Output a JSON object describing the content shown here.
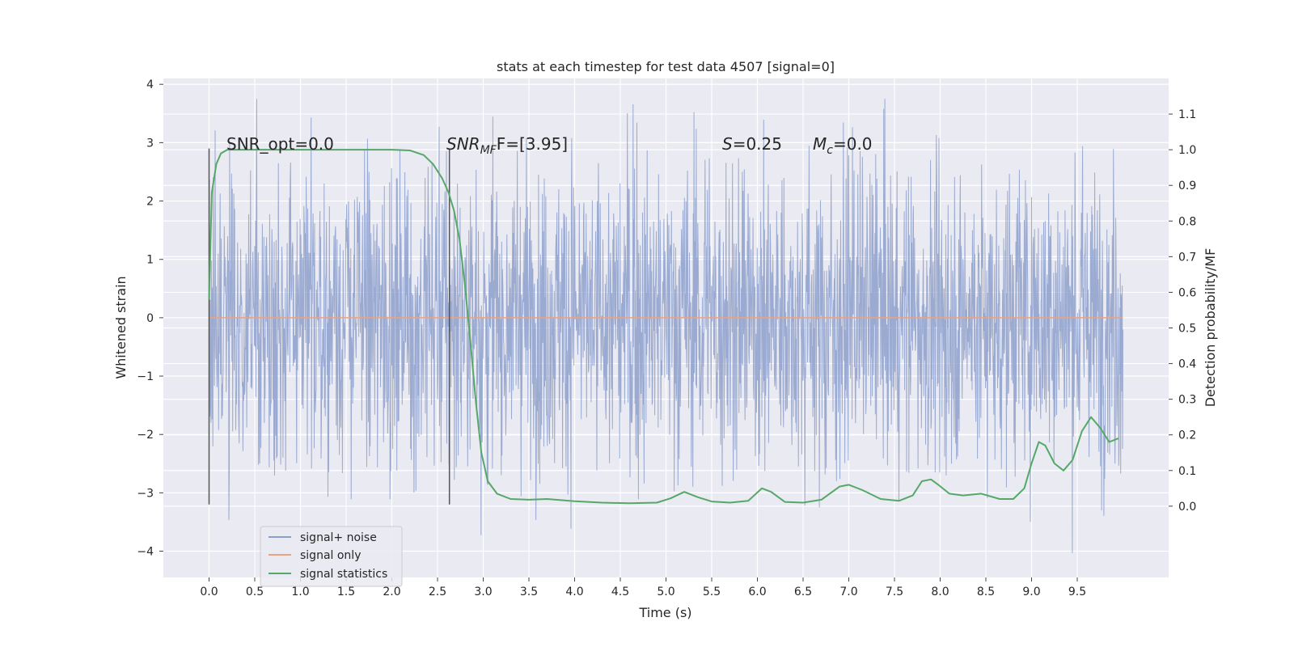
{
  "chart_data": {
    "type": "line",
    "title": "stats at each timestep for test data 4507 [signal=0]",
    "xlabel": "Time (s)",
    "ylabel_left": "Whitened strain",
    "ylabel_right": "Detection probability/MF",
    "xlim": [
      -0.5,
      10.5
    ],
    "ylim_left": [
      -4.45,
      4.1
    ],
    "ylim_right": [
      -0.2,
      1.2
    ],
    "x_ticks": [
      "0.0",
      "0.5",
      "1.0",
      "1.5",
      "2.0",
      "2.5",
      "3.0",
      "3.5",
      "4.0",
      "4.5",
      "5.0",
      "5.5",
      "6.0",
      "6.5",
      "7.0",
      "7.5",
      "8.0",
      "8.5",
      "9.0",
      "9.5"
    ],
    "y_ticks_left": [
      "4",
      "3",
      "2",
      "1",
      "0",
      "−1",
      "−2",
      "−3",
      "−4"
    ],
    "y_ticks_right": [
      "1.1",
      "1.0",
      "0.9",
      "0.8",
      "0.7",
      "0.6",
      "0.5",
      "0.4",
      "0.3",
      "0.2",
      "0.1",
      "0.0"
    ],
    "grid": true,
    "legend_position": "lower-left",
    "series": [
      {
        "name": "signal+ noise",
        "axis": "left",
        "color": "#8c9fcb",
        "kind": "noise",
        "x_range": [
          0.0,
          10.0
        ],
        "envelope_typical": [
          -2.4,
          2.4
        ],
        "extremes": [
          -4.05,
          3.75
        ]
      },
      {
        "name": "signal only",
        "axis": "left",
        "color": "#e8a383",
        "x": [
          0.0,
          10.0
        ],
        "values": [
          0.0,
          0.0
        ]
      },
      {
        "name": "signal statistics",
        "axis": "right",
        "color": "#55a868",
        "x": [
          0.0,
          0.03,
          0.08,
          0.13,
          0.2,
          0.3,
          0.5,
          1.0,
          1.5,
          2.0,
          2.2,
          2.35,
          2.45,
          2.55,
          2.62,
          2.68,
          2.74,
          2.8,
          2.86,
          2.92,
          2.98,
          3.05,
          3.15,
          3.3,
          3.5,
          3.7,
          4.0,
          4.3,
          4.6,
          4.9,
          5.05,
          5.2,
          5.35,
          5.5,
          5.7,
          5.9,
          6.05,
          6.15,
          6.3,
          6.5,
          6.7,
          6.9,
          7.0,
          7.15,
          7.35,
          7.55,
          7.7,
          7.8,
          7.9,
          7.98,
          8.1,
          8.25,
          8.45,
          8.65,
          8.8,
          8.92,
          9.0,
          9.08,
          9.15,
          9.25,
          9.35,
          9.45,
          9.55,
          9.65,
          9.75,
          9.85,
          9.95
        ],
        "values": [
          0.58,
          0.88,
          0.96,
          0.99,
          1.0,
          1.0,
          1.0,
          1.0,
          1.0,
          1.0,
          0.998,
          0.985,
          0.96,
          0.92,
          0.88,
          0.83,
          0.75,
          0.62,
          0.46,
          0.29,
          0.15,
          0.07,
          0.035,
          0.02,
          0.018,
          0.02,
          0.014,
          0.01,
          0.008,
          0.01,
          0.022,
          0.04,
          0.025,
          0.013,
          0.01,
          0.015,
          0.05,
          0.04,
          0.012,
          0.01,
          0.018,
          0.055,
          0.06,
          0.045,
          0.02,
          0.015,
          0.03,
          0.07,
          0.075,
          0.06,
          0.035,
          0.03,
          0.035,
          0.02,
          0.02,
          0.05,
          0.12,
          0.18,
          0.17,
          0.12,
          0.1,
          0.13,
          0.21,
          0.25,
          0.22,
          0.18,
          0.19
        ]
      }
    ],
    "annotations": {
      "snr_opt": {
        "text": "SNR_opt=0.0",
        "x": 0.2,
        "y_left": 2.85
      },
      "snr_mf": {
        "base": "SNR",
        "sub": "MF",
        "rest": "F=[3.95]",
        "x": 2.6,
        "y_left": 2.85
      },
      "s_stat": {
        "italic": "S",
        "rest": "=0.25",
        "x": 5.6,
        "y_left": 2.85
      },
      "mc": {
        "italic": "M",
        "sub": "c",
        "rest": "=0.0",
        "x": 6.6,
        "y_left": 2.85
      }
    },
    "vlines": [
      {
        "x": 0.0,
        "y_range": [
          -3.2,
          2.9
        ],
        "color": "#555555"
      },
      {
        "x": 2.63,
        "y_range": [
          -3.2,
          2.9
        ],
        "color": "#555555"
      }
    ]
  }
}
